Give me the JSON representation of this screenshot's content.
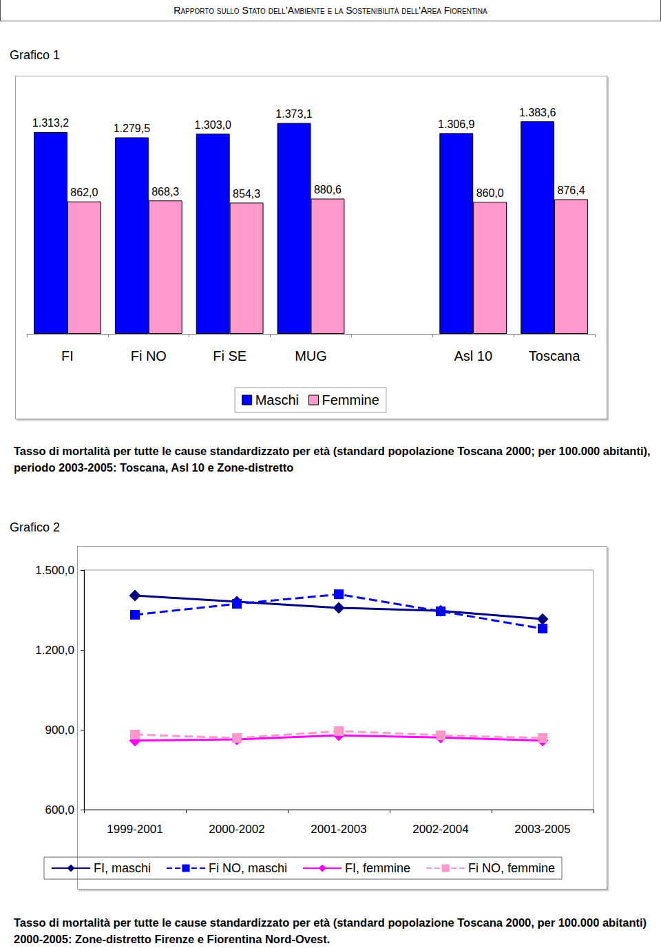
{
  "header": "Rapporto sullo Stato dell’Ambiente e la Sostenibilità dell'Area Fiorentina",
  "chart_data": [
    {
      "type": "bar",
      "title": "Grafico 1",
      "caption": "Tasso di mortalità per tutte le cause standardizzato per età (standard popolazione Toscana 2000; per 100.000 abitanti), periodo 2003-2005: Toscana, Asl 10 e Zone-distretto",
      "categories": [
        "FI",
        "Fi NO",
        "Fi SE",
        "MUG",
        null,
        "Asl 10",
        "Toscana"
      ],
      "series": [
        {
          "name": "Maschi",
          "color": "#0000ff",
          "values": [
            1313.2,
            1279.5,
            1303.0,
            1373.1,
            null,
            1306.9,
            1383.6
          ],
          "value_labels": [
            "1.313,2",
            "1.279,5",
            "1.303,0",
            "1.373,1",
            null,
            "1.306,9",
            "1.383,6"
          ]
        },
        {
          "name": "Femmine",
          "color": "#ff99cc",
          "values": [
            862.0,
            868.3,
            854.3,
            880.6,
            null,
            860.0,
            876.4
          ],
          "value_labels": [
            "862,0",
            "868,3",
            "854,3",
            "880,6",
            null,
            "860,0",
            "876,4"
          ]
        }
      ],
      "ylim": [
        0,
        1600
      ],
      "data_labels": true,
      "tick_labels": "x",
      "grid": false,
      "legend": "bottom"
    },
    {
      "type": "line",
      "title": "Grafico 2",
      "caption": "Tasso di mortalità per tutte le cause standardizzato per età (standard popolazione Toscana 2000, per 100.000 abitanti) 2000-2005: Zone-distretto Firenze e Fiorentina Nord-Ovest.",
      "categories": [
        "1999-2001",
        "2000-2002",
        "2001-2003",
        "2002-2004",
        "2003-2005"
      ],
      "series": [
        {
          "name": "FI, maschi",
          "color": "#000080",
          "marker": "diamond",
          "line_style": "solid",
          "values": [
            1404,
            1381,
            1358,
            1347,
            1316
          ]
        },
        {
          "name": "Fi NO, maschi",
          "color": "#0000ff",
          "marker": "square",
          "line_style": "dashed",
          "values": [
            1332,
            1373,
            1409,
            1345,
            1280
          ]
        },
        {
          "name": "FI, femmine",
          "color": "#ff00ff",
          "marker": "diamond",
          "line_style": "solid",
          "values": [
            859,
            864,
            879,
            871,
            859
          ]
        },
        {
          "name": "Fi NO, femmine",
          "color": "#ff99cc",
          "marker": "square",
          "line_style": "dashed",
          "values": [
            882,
            869,
            895,
            879,
            869
          ]
        }
      ],
      "ylim": [
        600,
        1500
      ],
      "yticks": [
        {
          "value": 600,
          "label": "600,0"
        },
        {
          "value": 900,
          "label": "900,0"
        },
        {
          "value": 1200,
          "label": "1.200,0"
        },
        {
          "value": 1500,
          "label": "1.500,0"
        }
      ],
      "grid": false,
      "legend": "bottom"
    }
  ]
}
